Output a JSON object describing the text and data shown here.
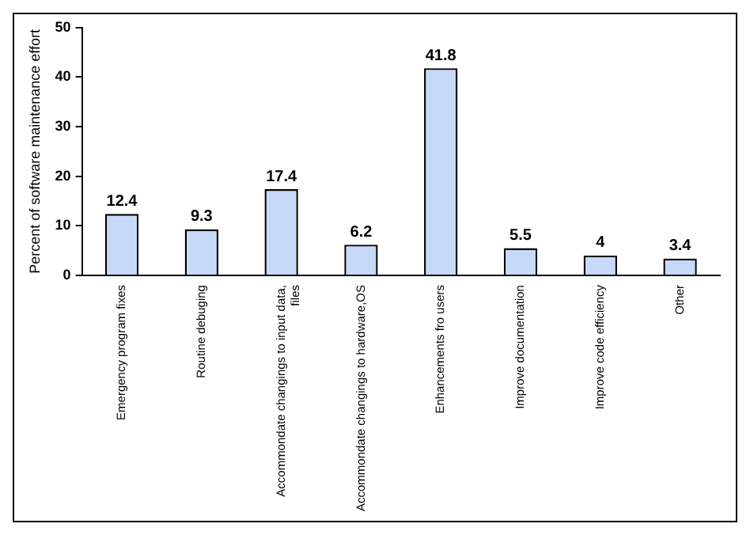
{
  "chart_data": {
    "type": "bar",
    "ylabel": "Percent of software maintenance effort",
    "categories": [
      "Emergency program fixes",
      "Routine debuging",
      "Accommondate changings to input data, files",
      "Accommondate changings to hardware,OS",
      "Enhancements fro users",
      "Improve documentation",
      "Improve code efficiency",
      "Other"
    ],
    "values": [
      12.4,
      9.3,
      17.4,
      6.2,
      41.8,
      5.5,
      4,
      3.4
    ],
    "color": "#c6d9f8",
    "ylim": [
      0,
      50
    ],
    "yticks": [
      0,
      10,
      20,
      30,
      40,
      50
    ],
    "grid": false,
    "data_labels": true
  }
}
